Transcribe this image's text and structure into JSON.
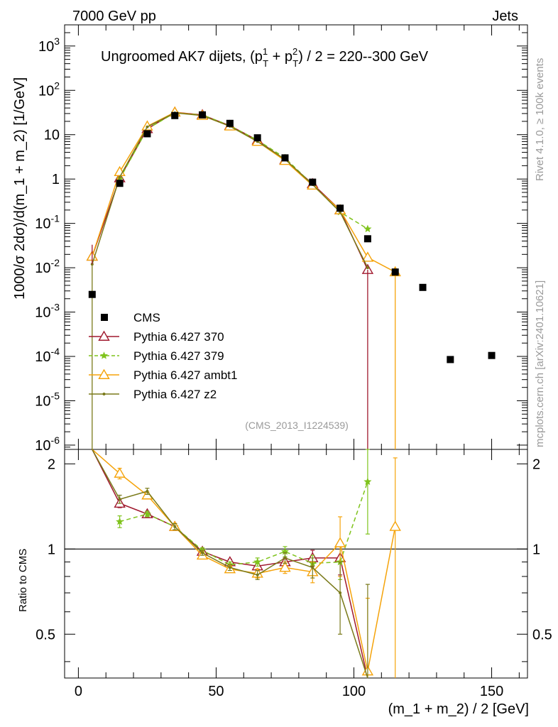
{
  "header": {
    "energy_label": "7000 GeV pp",
    "category_label": "Jets"
  },
  "side_text": {
    "rivet": "Rivet 4.1.0, ≥ 100k events",
    "mcplots": "mcplots.cern.ch [arXiv:2401.10621]"
  },
  "chart_data": {
    "type": "line",
    "title": "Ungroomed AK7 dijets, (p_T^1 + p_T^2) / 2 = 220--300 GeV",
    "title_parts": {
      "prefix": "Ungroomed AK7 dijets, (p",
      "sup1": "1",
      "mid": " + p",
      "sup2": "2",
      "sub": "T",
      "suffix": ") / 2 = 220--300 GeV"
    },
    "analysis_tag": "(CMS_2013_I1224539)",
    "xlabel": "(m_1 + m_2) / 2 [GeV]",
    "ylabel": "1000/σ  2dσ)/d(m_1 + m_2) [1/GeV]",
    "ratio_ylabel": "Ratio to CMS",
    "xlim": [
      -5,
      163
    ],
    "ylim": [
      8e-07,
      3000
    ],
    "ratio_ylim": [
      0.35,
      2.25
    ],
    "x_ticks": [
      "0",
      "50",
      "100",
      "150"
    ],
    "y_ticks": [
      "10^{-6}",
      "10^{-5}",
      "10^{-4}",
      "10^{-3}",
      "10^{-2}",
      "10^{-1}",
      "1",
      "10",
      "10^{2}",
      "10^{3}"
    ],
    "ratio_ticks": [
      "0.5",
      "1",
      "2"
    ],
    "reference": {
      "name": "CMS",
      "color": "#000000",
      "x": [
        5,
        15,
        25,
        35,
        45,
        55,
        65,
        75,
        85,
        95,
        105,
        115,
        125,
        135,
        150
      ],
      "y": [
        0.0025,
        0.8,
        10.5,
        27,
        28,
        18,
        8.5,
        3.0,
        0.85,
        0.22,
        0.045,
        0.008,
        0.0036,
        8.5e-05,
        0.000105
      ]
    },
    "series": [
      {
        "name": "Pythia 6.427 370",
        "color": "#a0192e",
        "dashed": false,
        "marker": "triangle-open",
        "x": [
          5,
          15,
          25,
          35,
          45,
          55,
          65,
          75,
          85,
          95,
          105
        ],
        "y": [
          0.018,
          1.05,
          13.5,
          32,
          28,
          16,
          7.5,
          2.7,
          0.78,
          0.2,
          0.009
        ],
        "ratio": [
          7.2,
          1.45,
          1.33,
          1.2,
          0.98,
          0.9,
          0.87,
          0.9,
          0.93,
          0.93,
          0.2
        ],
        "ratio_err": [
          0,
          0.05,
          0.03,
          0.03,
          0.02,
          0.02,
          0.02,
          0.03,
          0.06,
          0.12,
          0
        ]
      },
      {
        "name": "Pythia 6.427 379",
        "color": "#7fc31c",
        "dashed": true,
        "marker": "star",
        "x": [
          15,
          25,
          35,
          45,
          55,
          65,
          75,
          85,
          95,
          105
        ],
        "y": [
          1.0,
          13.5,
          31,
          28,
          16,
          7.5,
          3.0,
          0.75,
          0.18,
          0.075
        ],
        "ratio": [
          1.25,
          1.33,
          1.2,
          0.99,
          0.88,
          0.9,
          0.98,
          0.89,
          0.9,
          1.73
        ],
        "ratio_err": [
          0.06,
          0.03,
          0.03,
          0.02,
          0.02,
          0.03,
          0.04,
          0.06,
          0.12,
          0.6
        ]
      },
      {
        "name": "Pythia 6.427 ambt1",
        "color": "#f5a30a",
        "dashed": false,
        "marker": "triangle-open",
        "x": [
          5,
          15,
          25,
          35,
          45,
          55,
          65,
          75,
          85,
          95,
          105,
          115
        ],
        "y": [
          0.018,
          1.45,
          15.5,
          32,
          27,
          15.5,
          7.0,
          2.6,
          0.72,
          0.2,
          0.017,
          0.008
        ],
        "ratio": [
          7.2,
          1.85,
          1.55,
          1.2,
          0.95,
          0.85,
          0.82,
          0.86,
          0.83,
          1.05,
          0.37,
          1.2
        ],
        "ratio_err": [
          0,
          0.08,
          0.04,
          0.03,
          0.02,
          0.02,
          0.03,
          0.04,
          0.07,
          0.25,
          0.3,
          0.9
        ]
      },
      {
        "name": "Pythia 6.427 z2",
        "color": "#7a7a1a",
        "dashed": false,
        "marker": "dot",
        "x": [
          5,
          15,
          25,
          35,
          45,
          55,
          65,
          75,
          85,
          95,
          105
        ],
        "y": [
          0.012,
          1.1,
          15,
          31,
          27,
          15.5,
          7.0,
          2.8,
          0.75,
          0.18,
          0.01
        ],
        "ratio": [
          7.2,
          1.5,
          1.6,
          1.2,
          0.97,
          0.86,
          0.81,
          0.93,
          0.86,
          0.7,
          0.25
        ],
        "ratio_err": [
          0,
          0.05,
          0.04,
          0.03,
          0.02,
          0.02,
          0.03,
          0.04,
          0.07,
          0.2,
          0.5
        ]
      }
    ]
  }
}
